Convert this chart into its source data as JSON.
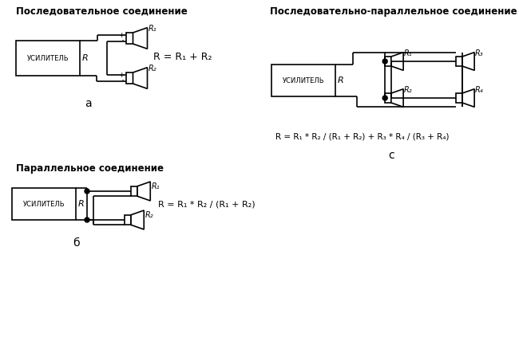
{
  "bg": "#ffffff",
  "lc": "#000000",
  "title_a": "Последовательное соединение",
  "title_b": "Параллельное соединение",
  "title_c": "Последовательно-параллельное соединение",
  "lbl_a": "a",
  "lbl_b": "б",
  "lbl_c": "c"
}
